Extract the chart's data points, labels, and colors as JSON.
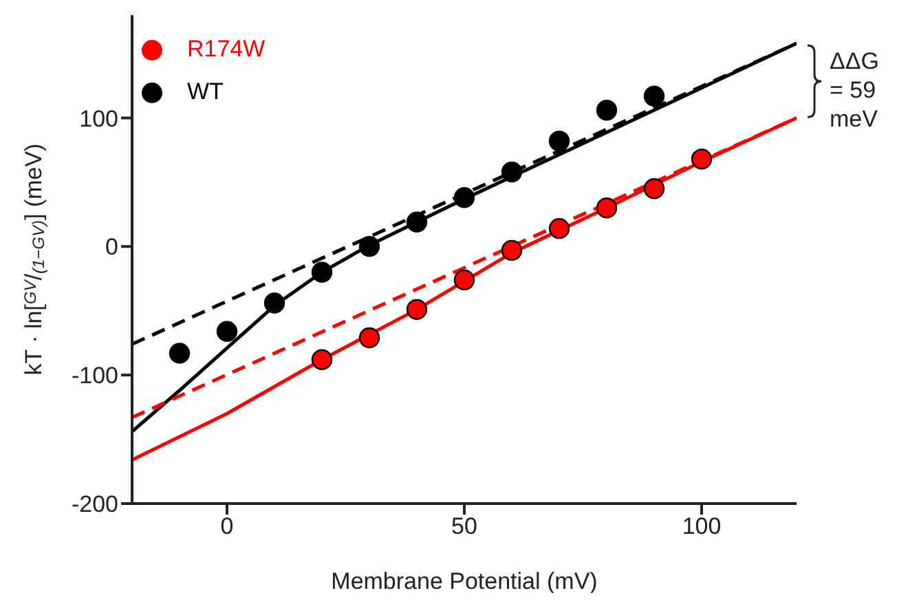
{
  "chart_data": {
    "type": "scatter",
    "xlabel": "Membrane Potential (mV)",
    "ylabel": "kT · ln[$^{GV}$/$_{(1−GV)}$] (meV)",
    "xlim": [
      -20,
      120
    ],
    "ylim": [
      -200,
      180
    ],
    "xticks": [
      0,
      50,
      100
    ],
    "yticks": [
      -200,
      -100,
      0,
      100
    ],
    "grid": false,
    "legend": "top left",
    "marker": "circle",
    "annotations": [
      "ΔΔG = 59 meV"
    ],
    "series": [
      {
        "name": "WT",
        "type": "scatter",
        "color": "#000000",
        "x": [
          -10,
          0,
          10,
          20,
          30,
          40,
          50,
          60,
          70,
          80,
          90
        ],
        "values": [
          -83,
          -66,
          -44,
          -20,
          0,
          19,
          38,
          58,
          82,
          106,
          117
        ]
      },
      {
        "type": "line",
        "color": "#000000",
        "line_style": "solid",
        "marker": "none",
        "x": [
          -20,
          -10,
          0,
          10,
          20,
          30,
          40,
          50,
          120
        ],
        "values": [
          -144,
          -112,
          -79,
          -46,
          -20,
          1,
          19,
          37,
          158
        ]
      },
      {
        "type": "line",
        "color": "#000000",
        "line_style": "dashed",
        "marker": "none",
        "x": [
          -20,
          120
        ],
        "values": [
          -76,
          158
        ]
      },
      {
        "name": "R174W",
        "type": "scatter",
        "color": "#ff0000",
        "x": [
          20,
          30,
          40,
          50,
          60,
          70,
          80,
          90,
          100
        ],
        "values": [
          -88,
          -71,
          -49,
          -26,
          -3,
          14,
          30,
          45,
          68
        ]
      },
      {
        "type": "line",
        "color": "#ff0000",
        "line_style": "solid",
        "marker": "none",
        "x": [
          -20,
          0,
          20,
          40,
          60,
          80,
          100,
          120
        ],
        "values": [
          -166,
          -130,
          -88,
          -49,
          -5,
          30,
          66,
          100
        ]
      },
      {
        "type": "line",
        "color": "#ff0000",
        "line_style": "dashed",
        "marker": "none",
        "x": [
          -20,
          120
        ],
        "values": [
          -133,
          100
        ]
      }
    ]
  }
}
